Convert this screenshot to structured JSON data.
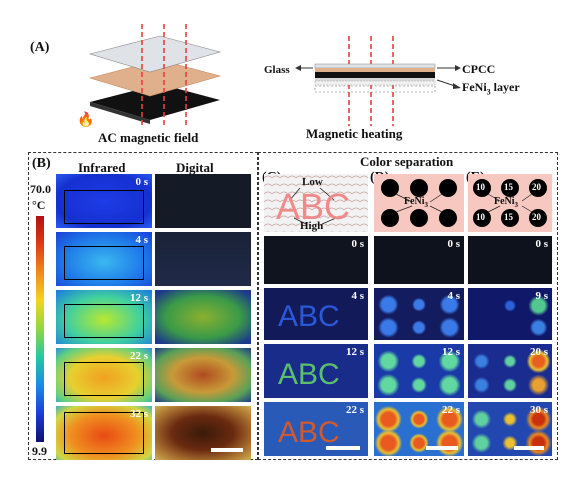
{
  "panel_a": {
    "label": "(A)",
    "caption_left": "AC magnetic field",
    "caption_right": "Magnetic heating",
    "layer_labels": {
      "glass": "Glass",
      "cpcc": "CPCC",
      "feni3": "FeNi",
      "feni3_sub": "3",
      "feni3_tail": " layer"
    }
  },
  "panel_b": {
    "label": "(B)",
    "col_infrared": "Infrared",
    "col_digital": "Digital",
    "scale_max": "70.0",
    "scale_unit": "°C",
    "scale_min": "9.9",
    "times": [
      "0 s",
      "4 s",
      "12 s",
      "22 s",
      "32 s"
    ]
  },
  "color_separation": "Color separation",
  "panel_c": {
    "label": "(C)",
    "low": "Low",
    "high": "High",
    "letters": "ABC",
    "times": [
      "0 s",
      "4 s",
      "12 s",
      "22 s"
    ]
  },
  "panel_d": {
    "label": "(D)",
    "center": "FeNi",
    "center_sub": "3",
    "times": [
      "0 s",
      "4 s",
      "12 s",
      "22 s"
    ]
  },
  "panel_e": {
    "label": "(E)",
    "center": "FeNi",
    "center_sub": "3",
    "dot_values": [
      "10",
      "15",
      "20",
      "10",
      "15",
      "20"
    ],
    "times": [
      "0 s",
      "9 s",
      "20 s",
      "30 s"
    ]
  },
  "colors": {
    "panel_border": "#333333",
    "dashed_line": "#e8403a",
    "pink_bg": "#f6c8c0"
  }
}
